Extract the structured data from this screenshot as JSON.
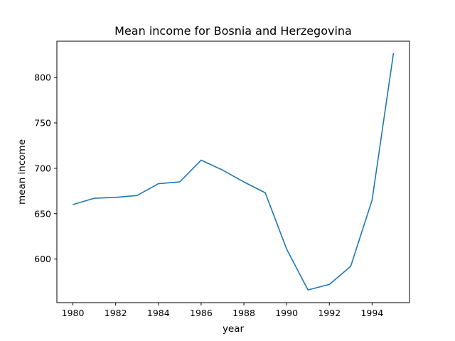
{
  "chart_data": {
    "type": "line",
    "title": "Mean income for Bosnia and Herzegovina",
    "xlabel": "year",
    "ylabel": "mean income",
    "xlim": [
      1979.25,
      1995.75
    ],
    "ylim": [
      552,
      840
    ],
    "x_ticks": [
      1980,
      1982,
      1984,
      1986,
      1988,
      1990,
      1992,
      1994
    ],
    "y_ticks": [
      600,
      650,
      700,
      750,
      800
    ],
    "grid": false,
    "series": [
      {
        "color": "#1f77b4",
        "x": [
          1980,
          1981,
          1982,
          1983,
          1984,
          1985,
          1986,
          1987,
          1988,
          1989,
          1990,
          1991,
          1992,
          1993,
          1994,
          1995
        ],
        "values": [
          660,
          667,
          668,
          670,
          683,
          685,
          709,
          698,
          685,
          673,
          611,
          566,
          572,
          592,
          665,
          827
        ]
      }
    ]
  }
}
